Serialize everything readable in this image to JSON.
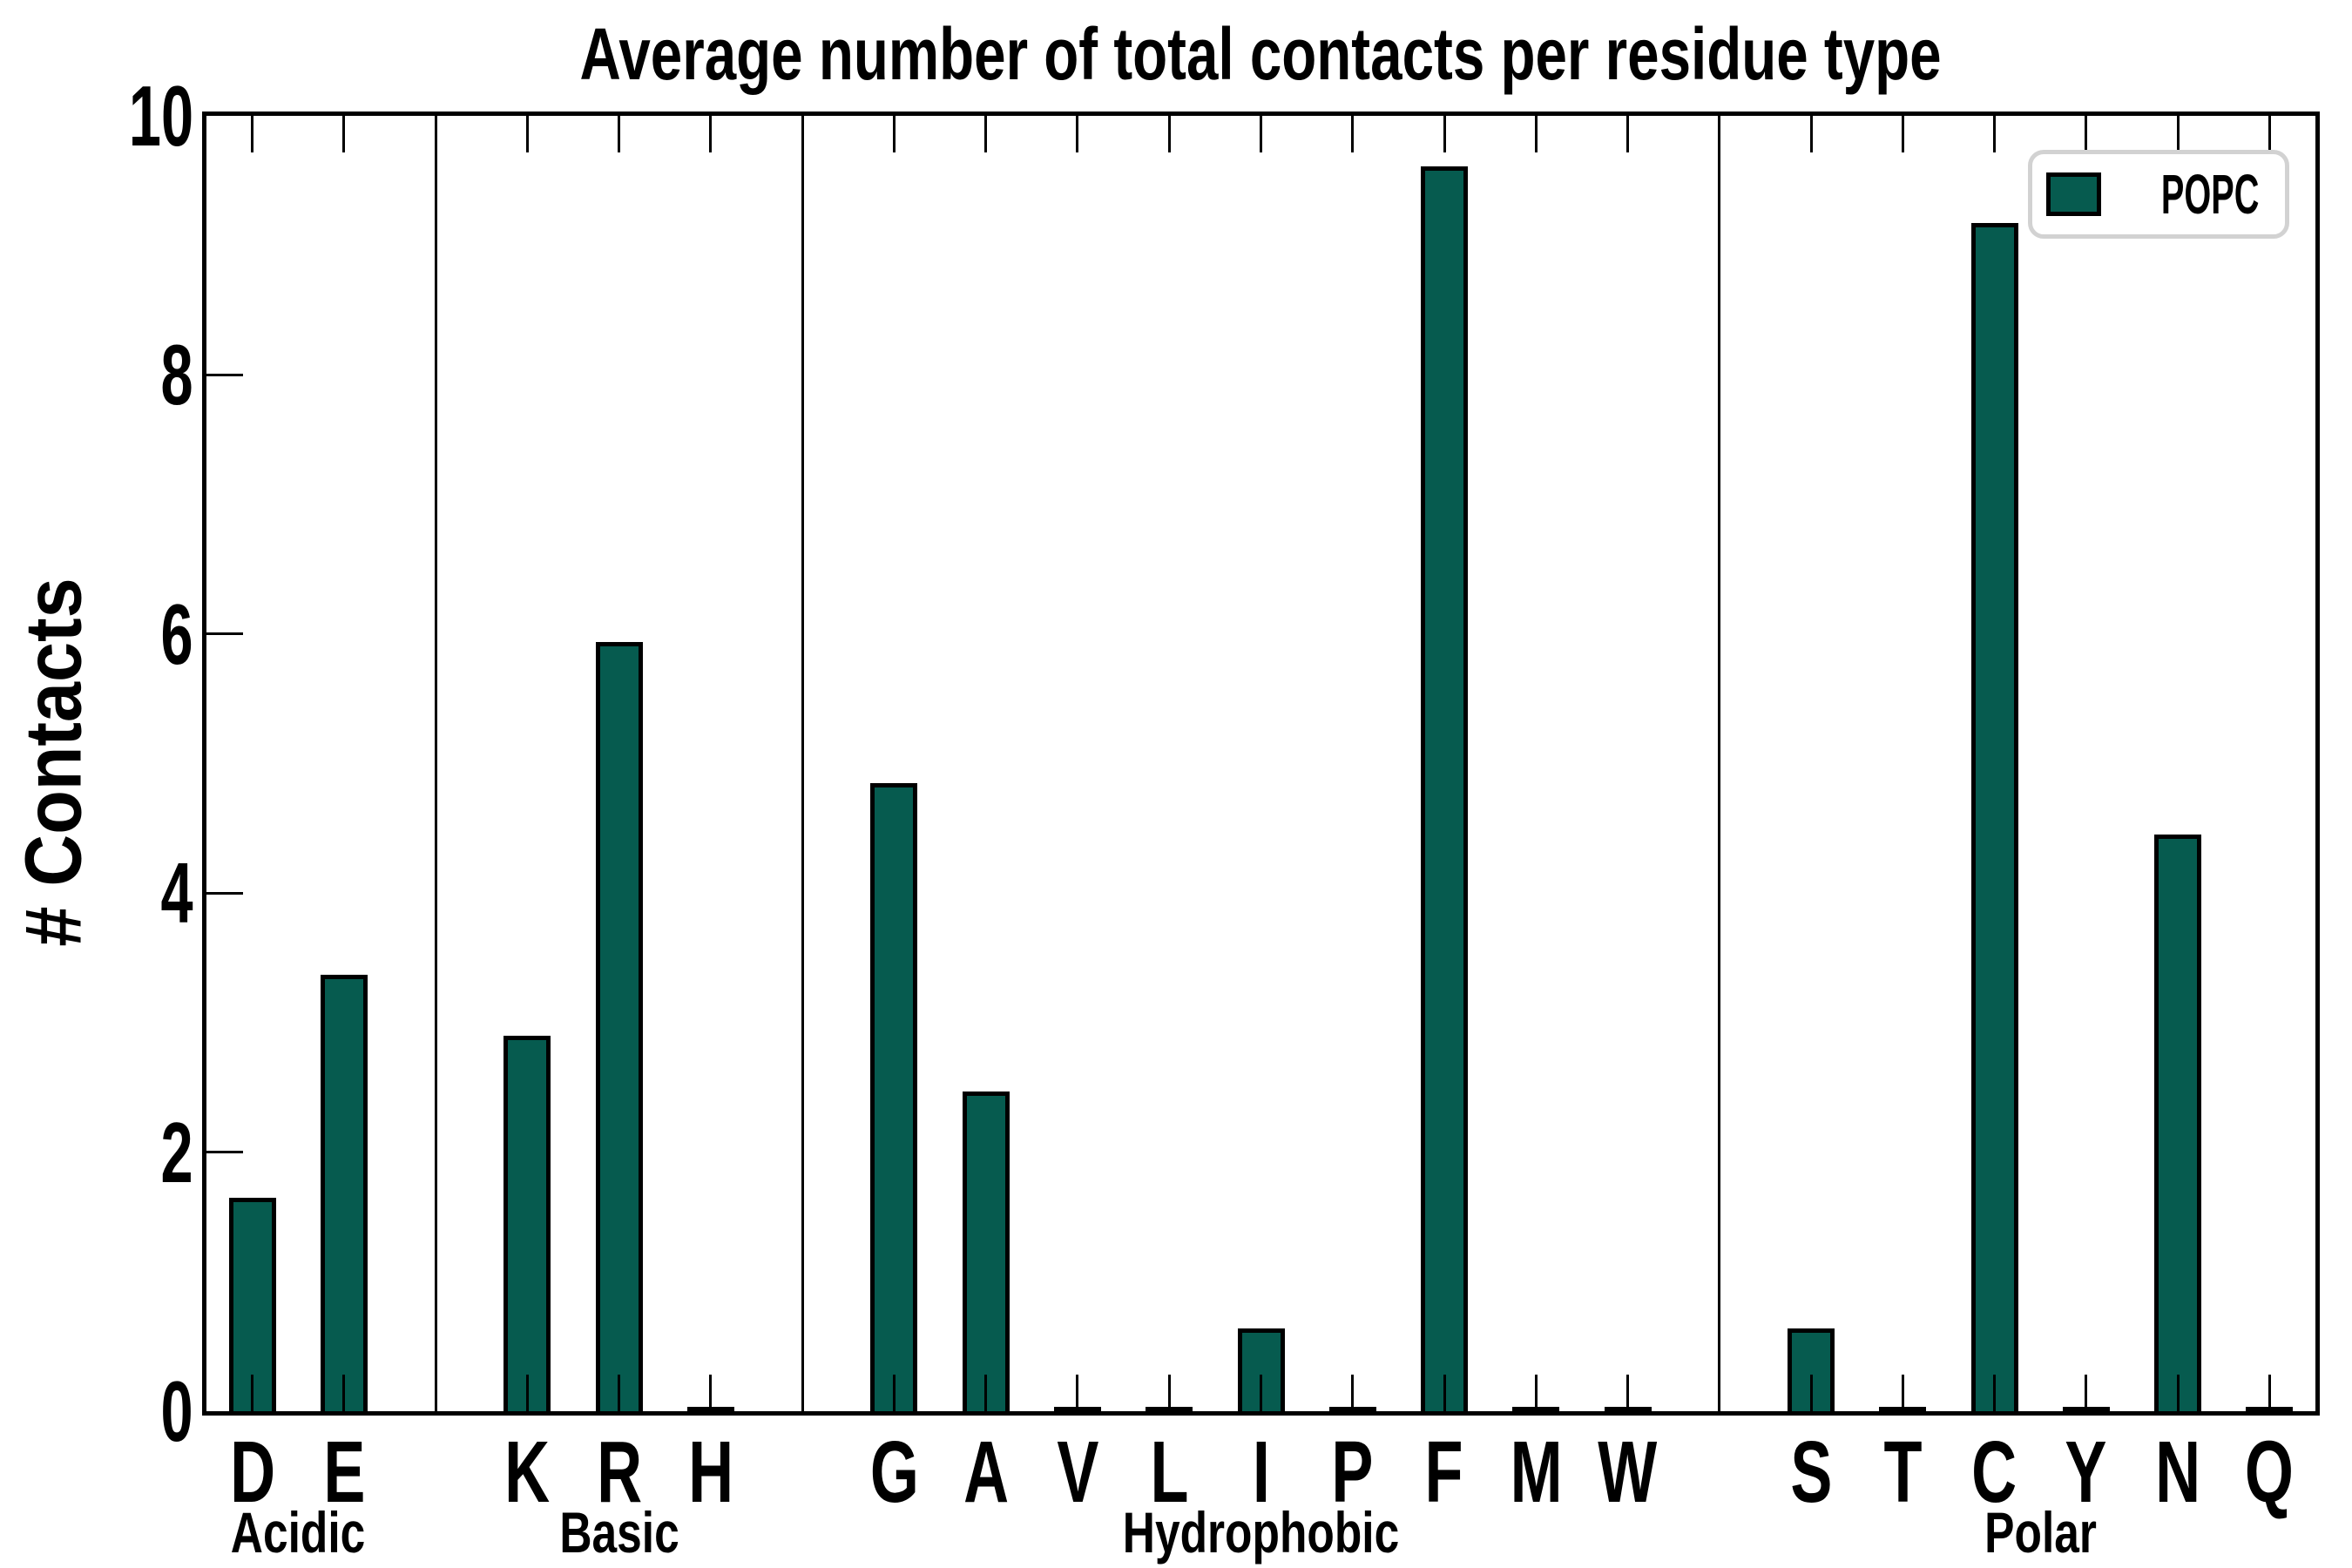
{
  "page": {
    "background": "#ffffff"
  },
  "chart_data": {
    "type": "bar",
    "title": "Average number of total contacts per residue type",
    "ylabel": "# Contacts",
    "xlabel": "",
    "ylim": [
      0,
      10
    ],
    "yticks": [
      0,
      2,
      4,
      6,
      8,
      10
    ],
    "grid": false,
    "bar_color": "#065b4f",
    "bar_edge_color": "#000000",
    "legend": {
      "label": "POPC",
      "position": "upper right",
      "swatch_color": "#065b4f"
    },
    "categories": [
      "D",
      "E",
      "K",
      "R",
      "H",
      "G",
      "A",
      "V",
      "L",
      "I",
      "P",
      "F",
      "M",
      "W",
      "S",
      "T",
      "C",
      "Y",
      "N",
      "Q"
    ],
    "values": [
      1.65,
      3.37,
      2.9,
      5.94,
      0.02,
      4.85,
      2.47,
      0.02,
      0.02,
      0.64,
      0.02,
      9.61,
      0.02,
      0.02,
      0.64,
      0.02,
      9.17,
      0.02,
      4.45,
      0.02
    ],
    "groups": [
      {
        "name": "Acidic",
        "residues": [
          "D",
          "E"
        ],
        "values": [
          1.65,
          3.37
        ]
      },
      {
        "name": "Basic",
        "residues": [
          "K",
          "R",
          "H"
        ],
        "values": [
          2.9,
          5.94,
          0.02
        ]
      },
      {
        "name": "Hydrophobic",
        "residues": [
          "G",
          "A",
          "V",
          "L",
          "I",
          "P",
          "F",
          "M",
          "W"
        ],
        "values": [
          4.85,
          2.47,
          0.02,
          0.02,
          0.64,
          0.02,
          9.61,
          0.02,
          0.02
        ]
      },
      {
        "name": "Polar",
        "residues": [
          "S",
          "T",
          "C",
          "Y",
          "N",
          "Q"
        ],
        "values": [
          0.64,
          0.02,
          9.17,
          0.02,
          4.45,
          0.02
        ]
      }
    ]
  }
}
